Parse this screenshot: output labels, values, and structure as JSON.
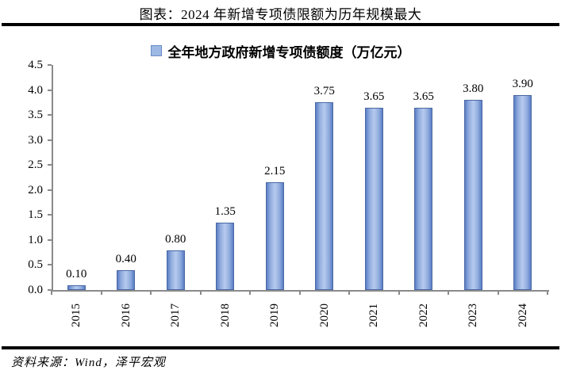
{
  "header": {
    "title": "图表：2024 年新增专项债限额为历年规模最大"
  },
  "legend": {
    "label": "全年地方政府新增专项债额度（万亿元）",
    "marker_color": "#9db8e2"
  },
  "chart_data": {
    "type": "bar",
    "title": "全年地方政府新增专项债额度（万亿元）",
    "categories": [
      "2015",
      "2016",
      "2017",
      "2018",
      "2019",
      "2020",
      "2021",
      "2022",
      "2023",
      "2024"
    ],
    "values": [
      0.1,
      0.4,
      0.8,
      1.35,
      2.15,
      3.75,
      3.65,
      3.65,
      3.8,
      3.9
    ],
    "data_labels": [
      "0.10",
      "0.40",
      "0.80",
      "1.35",
      "2.15",
      "3.75",
      "3.65",
      "3.65",
      "3.80",
      "3.90"
    ],
    "xlabel": "",
    "ylabel": "",
    "ylim": [
      0,
      4.5
    ],
    "ytick_step": 0.5,
    "ytick_labels": [
      "0.0",
      "0.5",
      "1.0",
      "1.5",
      "2.0",
      "2.5",
      "3.0",
      "3.5",
      "4.0",
      "4.5"
    ],
    "grid": false,
    "legend_position": "top",
    "bar_edge_color": "#5b7ec6",
    "bar_center_color": "#b7caee",
    "bar_border_color": "#4a68a4",
    "axis_color": "#8a8a8a"
  },
  "footer": {
    "source": "资料来源：Wind，泽平宏观"
  }
}
